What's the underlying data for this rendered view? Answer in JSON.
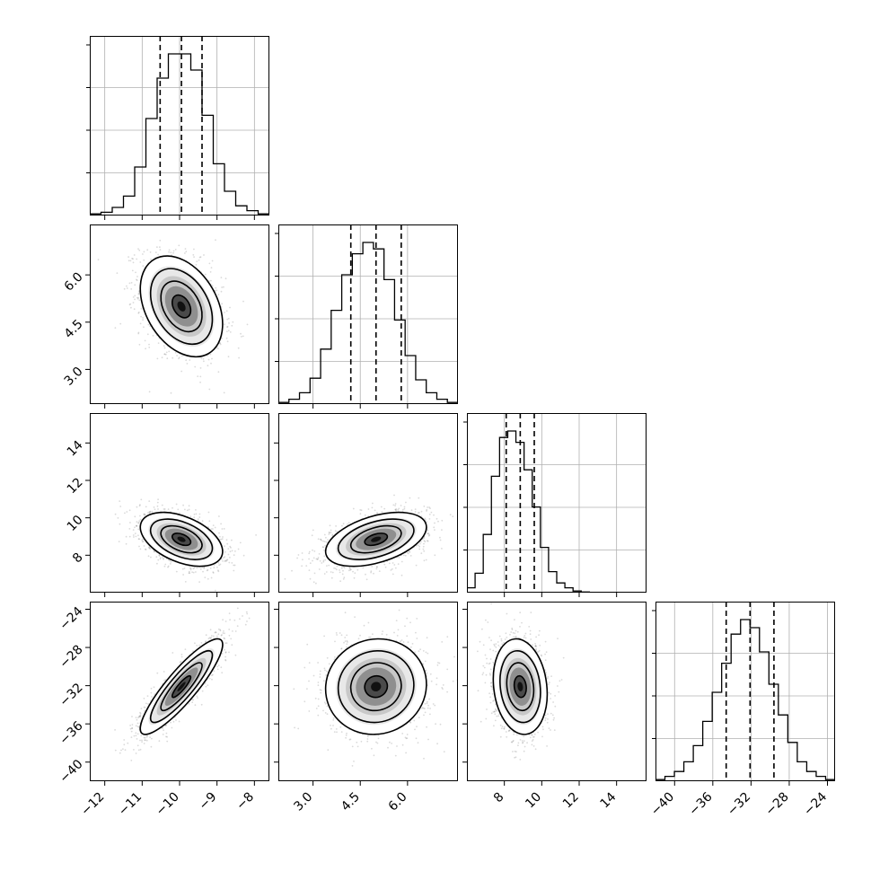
{
  "chart_data": {
    "type": "corner",
    "parameters": [
      {
        "range": [
          -12.4,
          -7.6
        ],
        "ticks": [
          -12,
          -11,
          -10,
          -9,
          -8
        ],
        "tick_labels": [
          "−12",
          "−11",
          "−10",
          "−9",
          "−8"
        ],
        "median": -9.95,
        "q16": -10.52,
        "q84": -9.4,
        "sigma": 0.55
      },
      {
        "range": [
          1.9,
          7.6
        ],
        "ticks": [
          3.0,
          4.5,
          6.0
        ],
        "tick_labels": [
          "3.0",
          "4.5",
          "6.0"
        ],
        "median": 5.0,
        "q16": 4.2,
        "q84": 5.8,
        "sigma": 0.8
      },
      {
        "range": [
          6.0,
          15.6
        ],
        "ticks": [
          8,
          10,
          12,
          14
        ],
        "tick_labels": [
          "8",
          "10",
          "12",
          "14"
        ],
        "median": 8.85,
        "q16": 8.1,
        "q84": 9.6,
        "sigma": 0.72
      },
      {
        "range": [
          -42,
          -23.2
        ],
        "ticks": [
          -40,
          -36,
          -32,
          -28,
          -24
        ],
        "tick_labels": [
          "−40",
          "−36",
          "−32",
          "−28",
          "−24"
        ],
        "median": -32.1,
        "q16": -34.6,
        "q84": -29.6,
        "sigma": 2.5
      }
    ],
    "correlations": [
      {
        "pair": [
          0,
          1
        ],
        "rho": -0.35
      },
      {
        "pair": [
          0,
          2
        ],
        "rho": -0.45
      },
      {
        "pair": [
          0,
          3
        ],
        "rho": 0.88
      },
      {
        "pair": [
          1,
          2
        ],
        "rho": 0.45
      },
      {
        "pair": [
          1,
          3
        ],
        "rho": 0.05
      },
      {
        "pair": [
          2,
          3
        ],
        "rho": -0.15
      }
    ],
    "histograms": [
      [
        0.01,
        0.02,
        0.05,
        0.12,
        0.3,
        0.6,
        0.85,
        1.0,
        1.0,
        0.9,
        0.62,
        0.32,
        0.15,
        0.06,
        0.03,
        0.01
      ],
      [
        0.01,
        0.03,
        0.07,
        0.16,
        0.34,
        0.58,
        0.8,
        0.93,
        1.0,
        0.96,
        0.77,
        0.52,
        0.3,
        0.15,
        0.07,
        0.03,
        0.01
      ],
      [
        0.03,
        0.12,
        0.36,
        0.72,
        0.96,
        1.0,
        0.93,
        0.76,
        0.53,
        0.28,
        0.13,
        0.06,
        0.03,
        0.01,
        0.004,
        0.002,
        0.001,
        0.001,
        0.001,
        0.001,
        0.001,
        0.001
      ],
      [
        0.01,
        0.03,
        0.06,
        0.12,
        0.22,
        0.37,
        0.55,
        0.73,
        0.91,
        1.0,
        0.95,
        0.8,
        0.6,
        0.41,
        0.24,
        0.12,
        0.06,
        0.03,
        0.01
      ]
    ],
    "grid": true
  }
}
